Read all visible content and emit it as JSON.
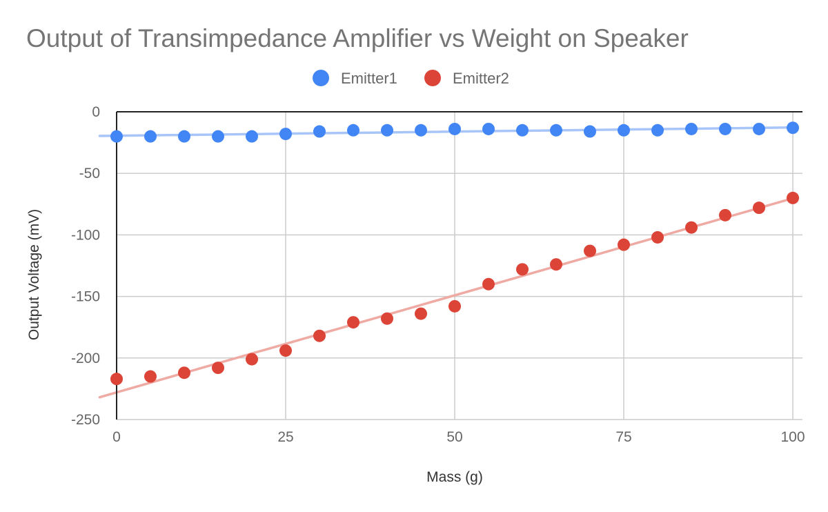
{
  "chart_data": {
    "type": "scatter",
    "title": "Output of Transimpedance Amplifier vs Weight on Speaker",
    "xlabel": "Mass (g)",
    "ylabel": "Output Voltage (mV)",
    "xlim": [
      0,
      100
    ],
    "ylim": [
      -250,
      0
    ],
    "x_ticks": [
      0,
      25,
      50,
      75,
      100
    ],
    "y_ticks": [
      0,
      -50,
      -100,
      -150,
      -200,
      -250
    ],
    "grid": true,
    "legend_position": "top-center",
    "trendline": "linear",
    "series": [
      {
        "name": "Emitter1",
        "color": "#4285f4",
        "trend_color": "#a7c5f9",
        "x": [
          0,
          5,
          10,
          15,
          20,
          25,
          30,
          35,
          40,
          45,
          50,
          55,
          60,
          65,
          70,
          75,
          80,
          85,
          90,
          95,
          100
        ],
        "y": [
          -20,
          -20,
          -20,
          -20,
          -20,
          -18,
          -16,
          -15,
          -15,
          -15,
          -14,
          -14,
          -15,
          -15,
          -16,
          -15,
          -15,
          -14,
          -14,
          -14,
          -13
        ]
      },
      {
        "name": "Emitter2",
        "color": "#db4437",
        "trend_color": "#f0aaa4",
        "x": [
          0,
          5,
          10,
          15,
          20,
          25,
          30,
          35,
          40,
          45,
          50,
          55,
          60,
          65,
          70,
          75,
          80,
          85,
          90,
          95,
          100
        ],
        "y": [
          -217,
          -215,
          -212,
          -208,
          -201,
          -194,
          -182,
          -171,
          -168,
          -164,
          -158,
          -140,
          -128,
          -124,
          -113,
          -108,
          -102,
          -94,
          -84,
          -78,
          -70
        ]
      }
    ]
  }
}
